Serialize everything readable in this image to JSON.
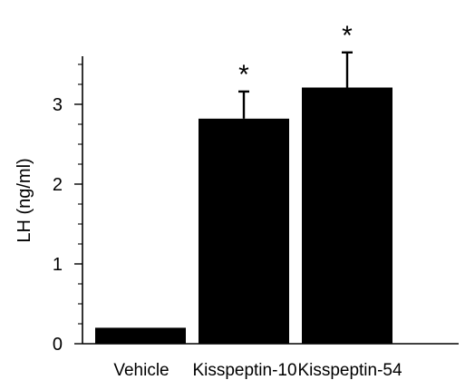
{
  "chart_data": {
    "type": "bar",
    "categories": [
      "Vehicle",
      "Kisspeptin-10",
      "Kisspeptin-54"
    ],
    "values": [
      0.2,
      2.82,
      3.21
    ],
    "error_upper": [
      0.2,
      3.16,
      3.65
    ],
    "annotations": [
      "",
      "*",
      "*"
    ],
    "ylabel": "LH (ng/ml)",
    "xlabel": "",
    "title": "",
    "ylim": [
      0,
      3.5
    ],
    "yticks": [
      0,
      1,
      2,
      3
    ],
    "ytick_labels": [
      "0",
      "1",
      "2",
      "3"
    ],
    "y_minor_step": 0.25,
    "grid": false,
    "legend": "none",
    "bar_color": "#000000"
  }
}
